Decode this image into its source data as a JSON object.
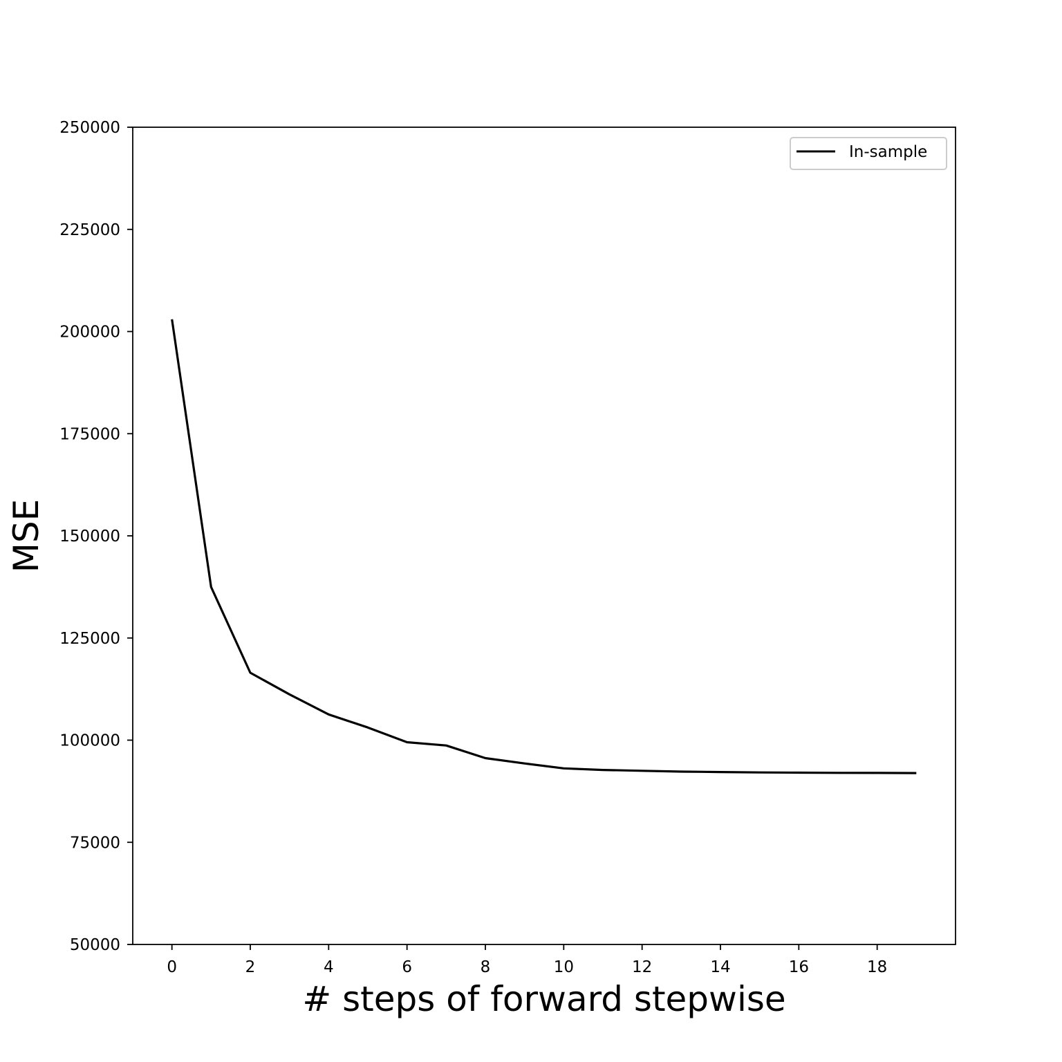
{
  "chart_data": {
    "type": "line",
    "title": "",
    "xlabel": "# steps of forward stepwise",
    "ylabel": "MSE",
    "xlim": [
      -1,
      20
    ],
    "ylim": [
      50000,
      250000
    ],
    "x_ticks": [
      0,
      2,
      4,
      6,
      8,
      10,
      12,
      14,
      16,
      18
    ],
    "y_ticks": [
      50000,
      75000,
      100000,
      125000,
      150000,
      175000,
      200000,
      225000,
      250000
    ],
    "grid": false,
    "legend_position": "top-right",
    "series": [
      {
        "name": "In-sample",
        "color": "#000000",
        "x": [
          0,
          1,
          2,
          3,
          4,
          5,
          6,
          7,
          8,
          9,
          10,
          11,
          12,
          13,
          14,
          15,
          16,
          17,
          18,
          19
        ],
        "y": [
          203000,
          137500,
          116500,
          111200,
          106300,
          103100,
          99500,
          98700,
          95600,
          94300,
          93100,
          92700,
          92500,
          92300,
          92200,
          92100,
          92050,
          92000,
          91980,
          91950
        ]
      }
    ]
  }
}
